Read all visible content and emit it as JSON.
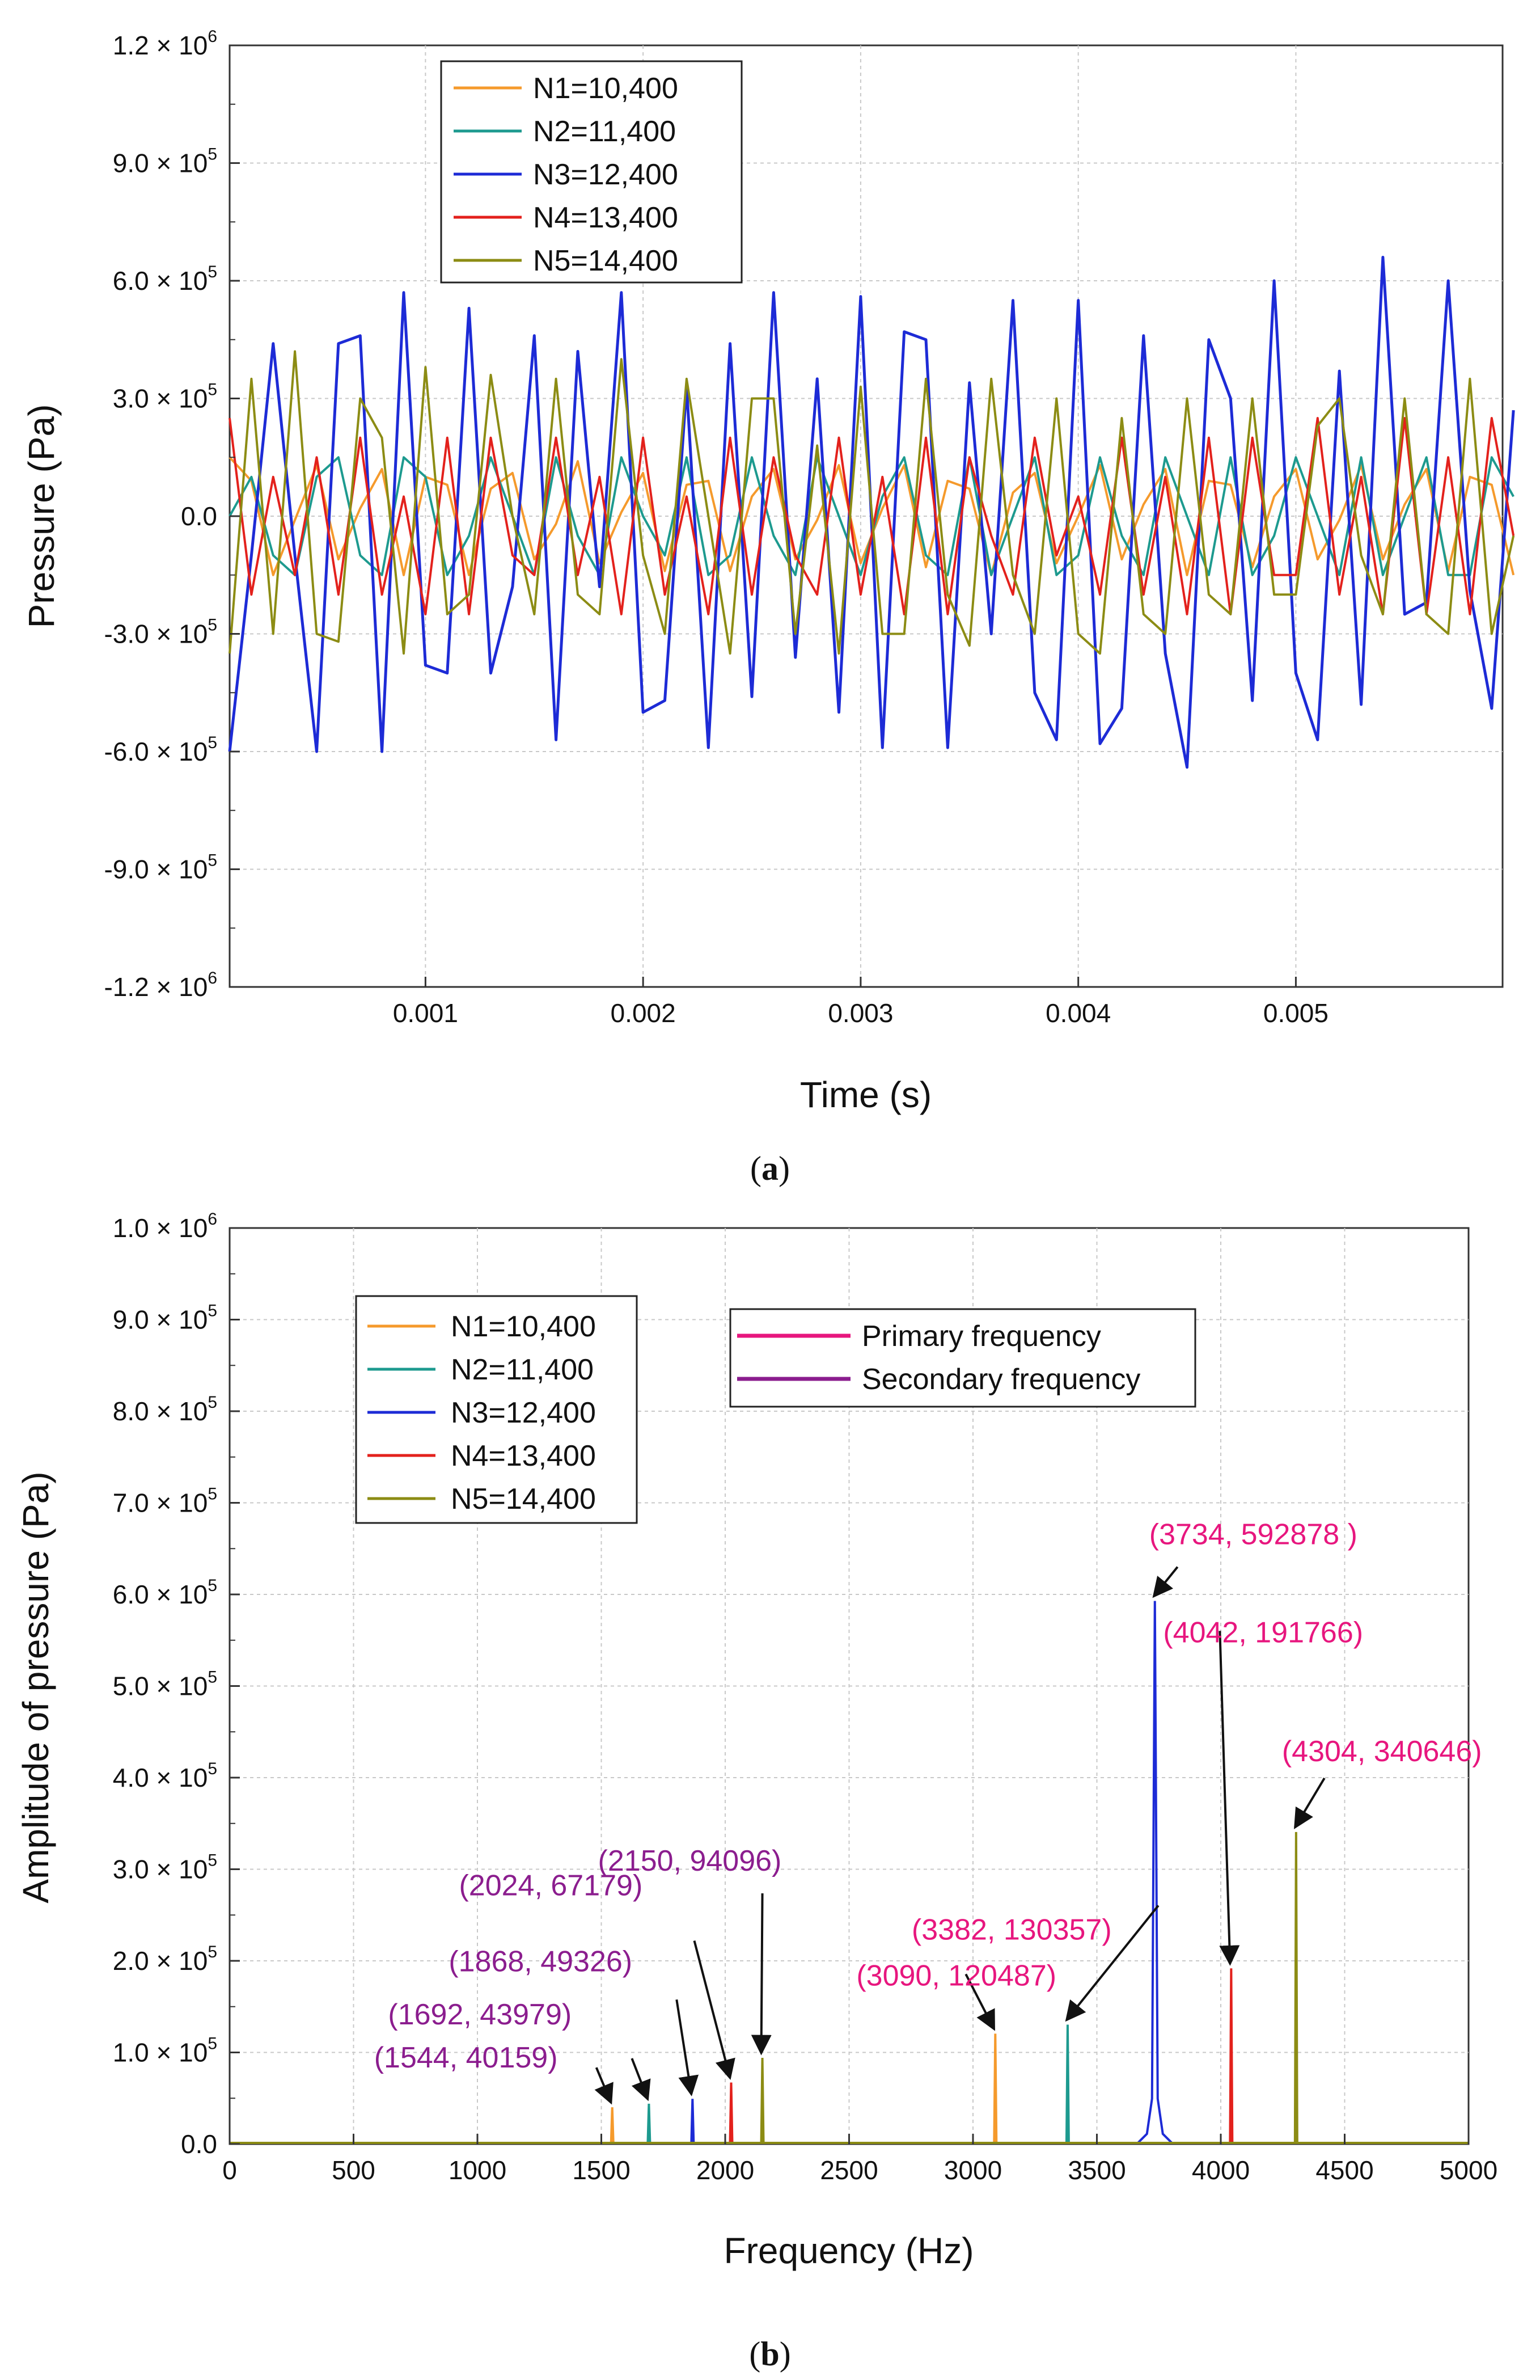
{
  "colors": {
    "N1": "#f59a2c",
    "N2": "#1d9a8f",
    "N3": "#1d2bd6",
    "N4": "#e3211c",
    "N5": "#8c8c14",
    "primary": "#e7167e",
    "secondary": "#8b1d8e"
  },
  "chart_data": [
    {
      "panel_label": "a",
      "type": "line",
      "xlabel": "Time (s)",
      "ylabel": "Pressure (Pa)",
      "xlim": [
        0.0001,
        0.00595
      ],
      "ylim": [
        -1200000,
        1200000
      ],
      "xticks": [
        {
          "v": 0.001,
          "label": "0.001"
        },
        {
          "v": 0.002,
          "label": "0.002"
        },
        {
          "v": 0.003,
          "label": "0.003"
        },
        {
          "v": 0.004,
          "label": "0.004"
        },
        {
          "v": 0.005,
          "label": "0.005"
        }
      ],
      "yticks": [
        {
          "v": 1200000,
          "m": "1.2 × 10",
          "e": "6"
        },
        {
          "v": 900000,
          "m": "9.0 × 10",
          "e": "5"
        },
        {
          "v": 600000,
          "m": "6.0 × 10",
          "e": "5"
        },
        {
          "v": 300000,
          "m": "3.0 × 10",
          "e": "5"
        },
        {
          "v": 0,
          "m": "0.0",
          "e": ""
        },
        {
          "v": -300000,
          "m": "-3.0 × 10",
          "e": "5"
        },
        {
          "v": -600000,
          "m": "-6.0 × 10",
          "e": "5"
        },
        {
          "v": -900000,
          "m": "-9.0 × 10",
          "e": "5"
        },
        {
          "v": -1200000,
          "m": "-1.2 × 10",
          "e": "6"
        }
      ],
      "legend_position": "top-left",
      "series": [
        {
          "key": "N1",
          "name": "N1=10,400",
          "dt": 0.0001,
          "values": [
            150000,
            90000,
            -150000,
            -10000,
            130000,
            -110000,
            20000,
            120000,
            -150000,
            100000,
            80000,
            -150000,
            70000,
            110000,
            -110000,
            -20000,
            140000,
            -120000,
            10000,
            110000,
            -140000,
            80000,
            90000,
            -140000,
            50000,
            120000,
            -110000,
            -10000,
            130000,
            -120000,
            20000,
            130000,
            -130000,
            90000,
            70000,
            -150000,
            60000,
            110000,
            -120000,
            0,
            130000,
            -110000,
            30000,
            120000,
            -150000,
            90000,
            80000,
            -130000,
            50000,
            120000,
            -110000,
            -10000,
            130000,
            -110000,
            30000,
            120000,
            -140000,
            100000,
            80000,
            -150000
          ]
        },
        {
          "key": "N2",
          "name": "N2=11,400",
          "dt": 0.0001,
          "values": [
            0,
            100000,
            -100000,
            -150000,
            100000,
            150000,
            -100000,
            -150000,
            150000,
            100000,
            -150000,
            -50000,
            150000,
            0,
            -150000,
            150000,
            -50000,
            -150000,
            150000,
            0,
            -100000,
            150000,
            -150000,
            -100000,
            150000,
            -50000,
            -150000,
            150000,
            0,
            -150000,
            50000,
            150000,
            -100000,
            -150000,
            150000,
            -150000,
            0,
            150000,
            -150000,
            -100000,
            150000,
            -50000,
            -150000,
            150000,
            0,
            -150000,
            150000,
            -150000,
            -50000,
            150000,
            0,
            -150000,
            150000,
            -150000,
            0,
            150000,
            -150000,
            -150000,
            150000,
            50000
          ]
        },
        {
          "key": "N3",
          "name": "N3=12,400",
          "dt": 0.0001,
          "values": [
            -600000,
            -100000,
            440000,
            -100000,
            -600000,
            440000,
            460000,
            -600000,
            570000,
            -380000,
            -400000,
            530000,
            -400000,
            -180000,
            460000,
            -570000,
            420000,
            -180000,
            570000,
            -500000,
            -470000,
            330000,
            -590000,
            440000,
            -460000,
            570000,
            -360000,
            350000,
            -500000,
            560000,
            -590000,
            470000,
            450000,
            -590000,
            340000,
            -300000,
            550000,
            -450000,
            -570000,
            550000,
            -580000,
            -490000,
            460000,
            -350000,
            -640000,
            450000,
            300000,
            -470000,
            600000,
            -400000,
            -570000,
            370000,
            -480000,
            660000,
            -250000,
            -220000,
            600000,
            -190000,
            -490000,
            270000
          ]
        },
        {
          "key": "N4",
          "name": "N4=13,400",
          "dt": 0.0001,
          "values": [
            250000,
            -200000,
            100000,
            -150000,
            150000,
            -200000,
            200000,
            -200000,
            50000,
            -250000,
            200000,
            -250000,
            200000,
            -100000,
            -150000,
            200000,
            -150000,
            100000,
            -250000,
            200000,
            -200000,
            50000,
            -250000,
            200000,
            -200000,
            150000,
            -100000,
            -200000,
            200000,
            -200000,
            100000,
            -250000,
            200000,
            -250000,
            150000,
            -50000,
            -200000,
            200000,
            -100000,
            50000,
            -200000,
            200000,
            -200000,
            100000,
            -250000,
            200000,
            -250000,
            200000,
            -150000,
            -150000,
            250000,
            -200000,
            100000,
            -250000,
            250000,
            -250000,
            150000,
            -250000,
            250000,
            -50000
          ]
        },
        {
          "key": "N5",
          "name": "N5=14,400",
          "dt": 0.0001,
          "values": [
            -350000,
            350000,
            -300000,
            420000,
            -300000,
            -320000,
            300000,
            200000,
            -350000,
            380000,
            -250000,
            -200000,
            360000,
            0,
            -250000,
            350000,
            -200000,
            -250000,
            400000,
            -100000,
            -300000,
            350000,
            0,
            -350000,
            300000,
            300000,
            -300000,
            180000,
            -350000,
            330000,
            -300000,
            -300000,
            350000,
            -200000,
            -330000,
            350000,
            -150000,
            -300000,
            300000,
            -300000,
            -350000,
            250000,
            -250000,
            -300000,
            300000,
            -200000,
            -250000,
            300000,
            -200000,
            -200000,
            230000,
            300000,
            -100000,
            -250000,
            300000,
            -250000,
            -300000,
            350000,
            -300000,
            -50000
          ]
        }
      ]
    },
    {
      "panel_label": "b",
      "type": "line",
      "xlabel": "Frequency (Hz)",
      "ylabel": "Amplitude of pressure (Pa)",
      "xlim": [
        0,
        5000
      ],
      "ylim": [
        0,
        1000000
      ],
      "xticks": [
        {
          "v": 0,
          "label": "0"
        },
        {
          "v": 500,
          "label": "500"
        },
        {
          "v": 1000,
          "label": "1000"
        },
        {
          "v": 1500,
          "label": "1500"
        },
        {
          "v": 2000,
          "label": "2000"
        },
        {
          "v": 2500,
          "label": "2500"
        },
        {
          "v": 3000,
          "label": "3000"
        },
        {
          "v": 3500,
          "label": "3500"
        },
        {
          "v": 4000,
          "label": "4000"
        },
        {
          "v": 4500,
          "label": "4500"
        },
        {
          "v": 5000,
          "label": "5000"
        }
      ],
      "yticks": [
        {
          "v": 1000000,
          "m": "1.0 × 10",
          "e": "6"
        },
        {
          "v": 900000,
          "m": "9.0 × 10",
          "e": "5"
        },
        {
          "v": 800000,
          "m": "8.0 × 10",
          "e": "5"
        },
        {
          "v": 700000,
          "m": "7.0 × 10",
          "e": "5"
        },
        {
          "v": 600000,
          "m": "6.0 × 10",
          "e": "5"
        },
        {
          "v": 500000,
          "m": "5.0 × 10",
          "e": "5"
        },
        {
          "v": 400000,
          "m": "4.0 × 10",
          "e": "5"
        },
        {
          "v": 300000,
          "m": "3.0 × 10",
          "e": "5"
        },
        {
          "v": 200000,
          "m": "2.0 × 10",
          "e": "5"
        },
        {
          "v": 100000,
          "m": "1.0 × 10",
          "e": "5"
        },
        {
          "v": 0,
          "m": "0.0",
          "e": ""
        }
      ],
      "legend_position": "top-left",
      "legend2": [
        {
          "label": "Primary frequency",
          "color": "#e7167e"
        },
        {
          "label": "Secondary frequency",
          "color": "#8b1d8e"
        }
      ],
      "series": [
        {
          "key": "N1",
          "name": "N1=10,400",
          "peaks": [
            [
              1544,
              40159
            ],
            [
              3090,
              120487
            ]
          ]
        },
        {
          "key": "N2",
          "name": "N2=11,400",
          "peaks": [
            [
              1692,
              43979
            ],
            [
              3382,
              130357
            ]
          ]
        },
        {
          "key": "N3",
          "name": "N3=12,400",
          "peaks": [
            [
              1868,
              49326
            ],
            [
              3734,
              592878
            ]
          ],
          "broad": true
        },
        {
          "key": "N4",
          "name": "N4=13,400",
          "peaks": [
            [
              2024,
              67179
            ],
            [
              4042,
              191766
            ]
          ]
        },
        {
          "key": "N5",
          "name": "N5=14,400",
          "peaks": [
            [
              2150,
              94096
            ],
            [
              4304,
              340646
            ]
          ]
        }
      ],
      "annotations": [
        {
          "text": "(1544, 40159)",
          "kind": "secondary",
          "x": 1544,
          "y": 40159
        },
        {
          "text": "(1692, 43979)",
          "kind": "secondary",
          "x": 1692,
          "y": 43979
        },
        {
          "text": "(1868, 49326)",
          "kind": "secondary",
          "x": 1868,
          "y": 49326
        },
        {
          "text": "(2024, 67179)",
          "kind": "secondary",
          "x": 2024,
          "y": 67179
        },
        {
          "text": "(2150, 94096)",
          "kind": "secondary",
          "x": 2150,
          "y": 94096
        },
        {
          "text": "(3090, 120487)",
          "kind": "primary",
          "x": 3090,
          "y": 120487
        },
        {
          "text": "(3382, 130357)",
          "kind": "primary",
          "x": 3382,
          "y": 130357
        },
        {
          "text": "(3734, 592878 )",
          "kind": "primary",
          "x": 3734,
          "y": 592878
        },
        {
          "text": "(4042, 191766)",
          "kind": "primary",
          "x": 4042,
          "y": 191766
        },
        {
          "text": "(4304, 340646)",
          "kind": "primary",
          "x": 4304,
          "y": 340646
        }
      ]
    }
  ]
}
